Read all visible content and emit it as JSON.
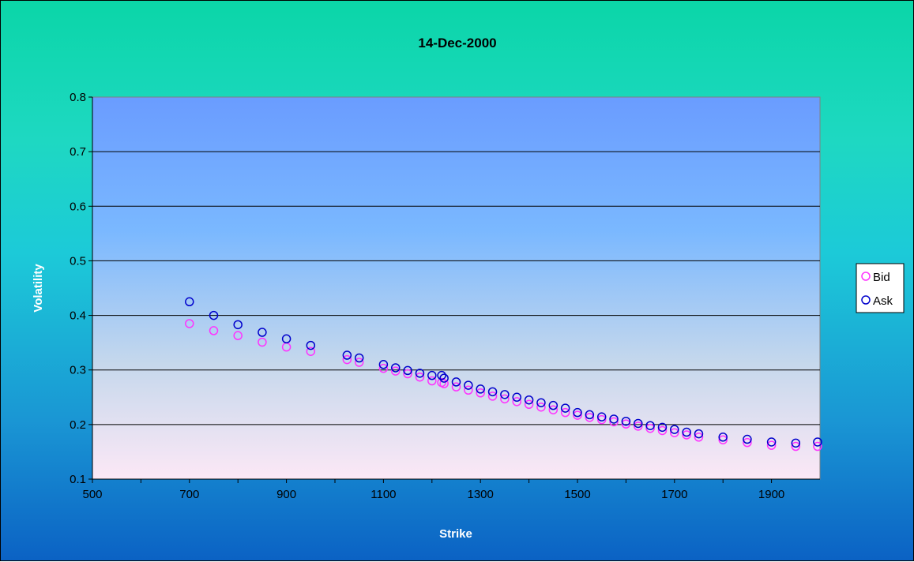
{
  "chart_data": {
    "type": "scatter",
    "title": "14-Dec-2000",
    "xlabel": "Strike",
    "ylabel": "Volatility",
    "xlim": [
      500,
      2000
    ],
    "ylim": [
      0.1,
      0.8
    ],
    "x_ticks": [
      "500",
      "700",
      "900",
      "1100",
      "1300",
      "1500",
      "1700",
      "1900"
    ],
    "y_ticks": [
      "0.1",
      "0.2",
      "0.3",
      "0.4",
      "0.5",
      "0.6",
      "0.7",
      "0.8"
    ],
    "grid": "horizontal",
    "legend_position": "right",
    "series": [
      {
        "name": "Bid",
        "color": "#ff33ff",
        "x": [
          700,
          750,
          800,
          850,
          900,
          950,
          1025,
          1050,
          1100,
          1125,
          1150,
          1175,
          1200,
          1220,
          1225,
          1250,
          1275,
          1300,
          1325,
          1350,
          1375,
          1400,
          1425,
          1450,
          1475,
          1500,
          1525,
          1550,
          1575,
          1600,
          1625,
          1650,
          1675,
          1700,
          1725,
          1750,
          1800,
          1850,
          1900,
          1950,
          1995
        ],
        "y": [
          0.385,
          0.372,
          0.363,
          0.351,
          0.342,
          0.334,
          0.319,
          0.314,
          0.303,
          0.298,
          0.293,
          0.287,
          0.28,
          0.277,
          0.275,
          0.269,
          0.263,
          0.258,
          0.252,
          0.247,
          0.242,
          0.237,
          0.232,
          0.227,
          0.222,
          0.217,
          0.213,
          0.209,
          0.205,
          0.201,
          0.197,
          0.193,
          0.189,
          0.185,
          0.181,
          0.177,
          0.172,
          0.167,
          0.162,
          0.16,
          0.16
        ]
      },
      {
        "name": "Ask",
        "color": "#0000cc",
        "x": [
          700,
          750,
          800,
          850,
          900,
          950,
          1025,
          1050,
          1100,
          1125,
          1150,
          1175,
          1200,
          1220,
          1225,
          1250,
          1275,
          1300,
          1325,
          1350,
          1375,
          1400,
          1425,
          1450,
          1475,
          1500,
          1525,
          1550,
          1575,
          1600,
          1625,
          1650,
          1675,
          1700,
          1725,
          1750,
          1800,
          1850,
          1900,
          1950,
          1995
        ],
        "y": [
          0.425,
          0.4,
          0.383,
          0.369,
          0.357,
          0.345,
          0.327,
          0.322,
          0.31,
          0.304,
          0.299,
          0.294,
          0.29,
          0.29,
          0.285,
          0.278,
          0.272,
          0.265,
          0.26,
          0.255,
          0.25,
          0.245,
          0.24,
          0.235,
          0.23,
          0.222,
          0.218,
          0.214,
          0.21,
          0.206,
          0.202,
          0.198,
          0.195,
          0.191,
          0.186,
          0.183,
          0.177,
          0.173,
          0.168,
          0.166,
          0.168
        ]
      }
    ]
  }
}
